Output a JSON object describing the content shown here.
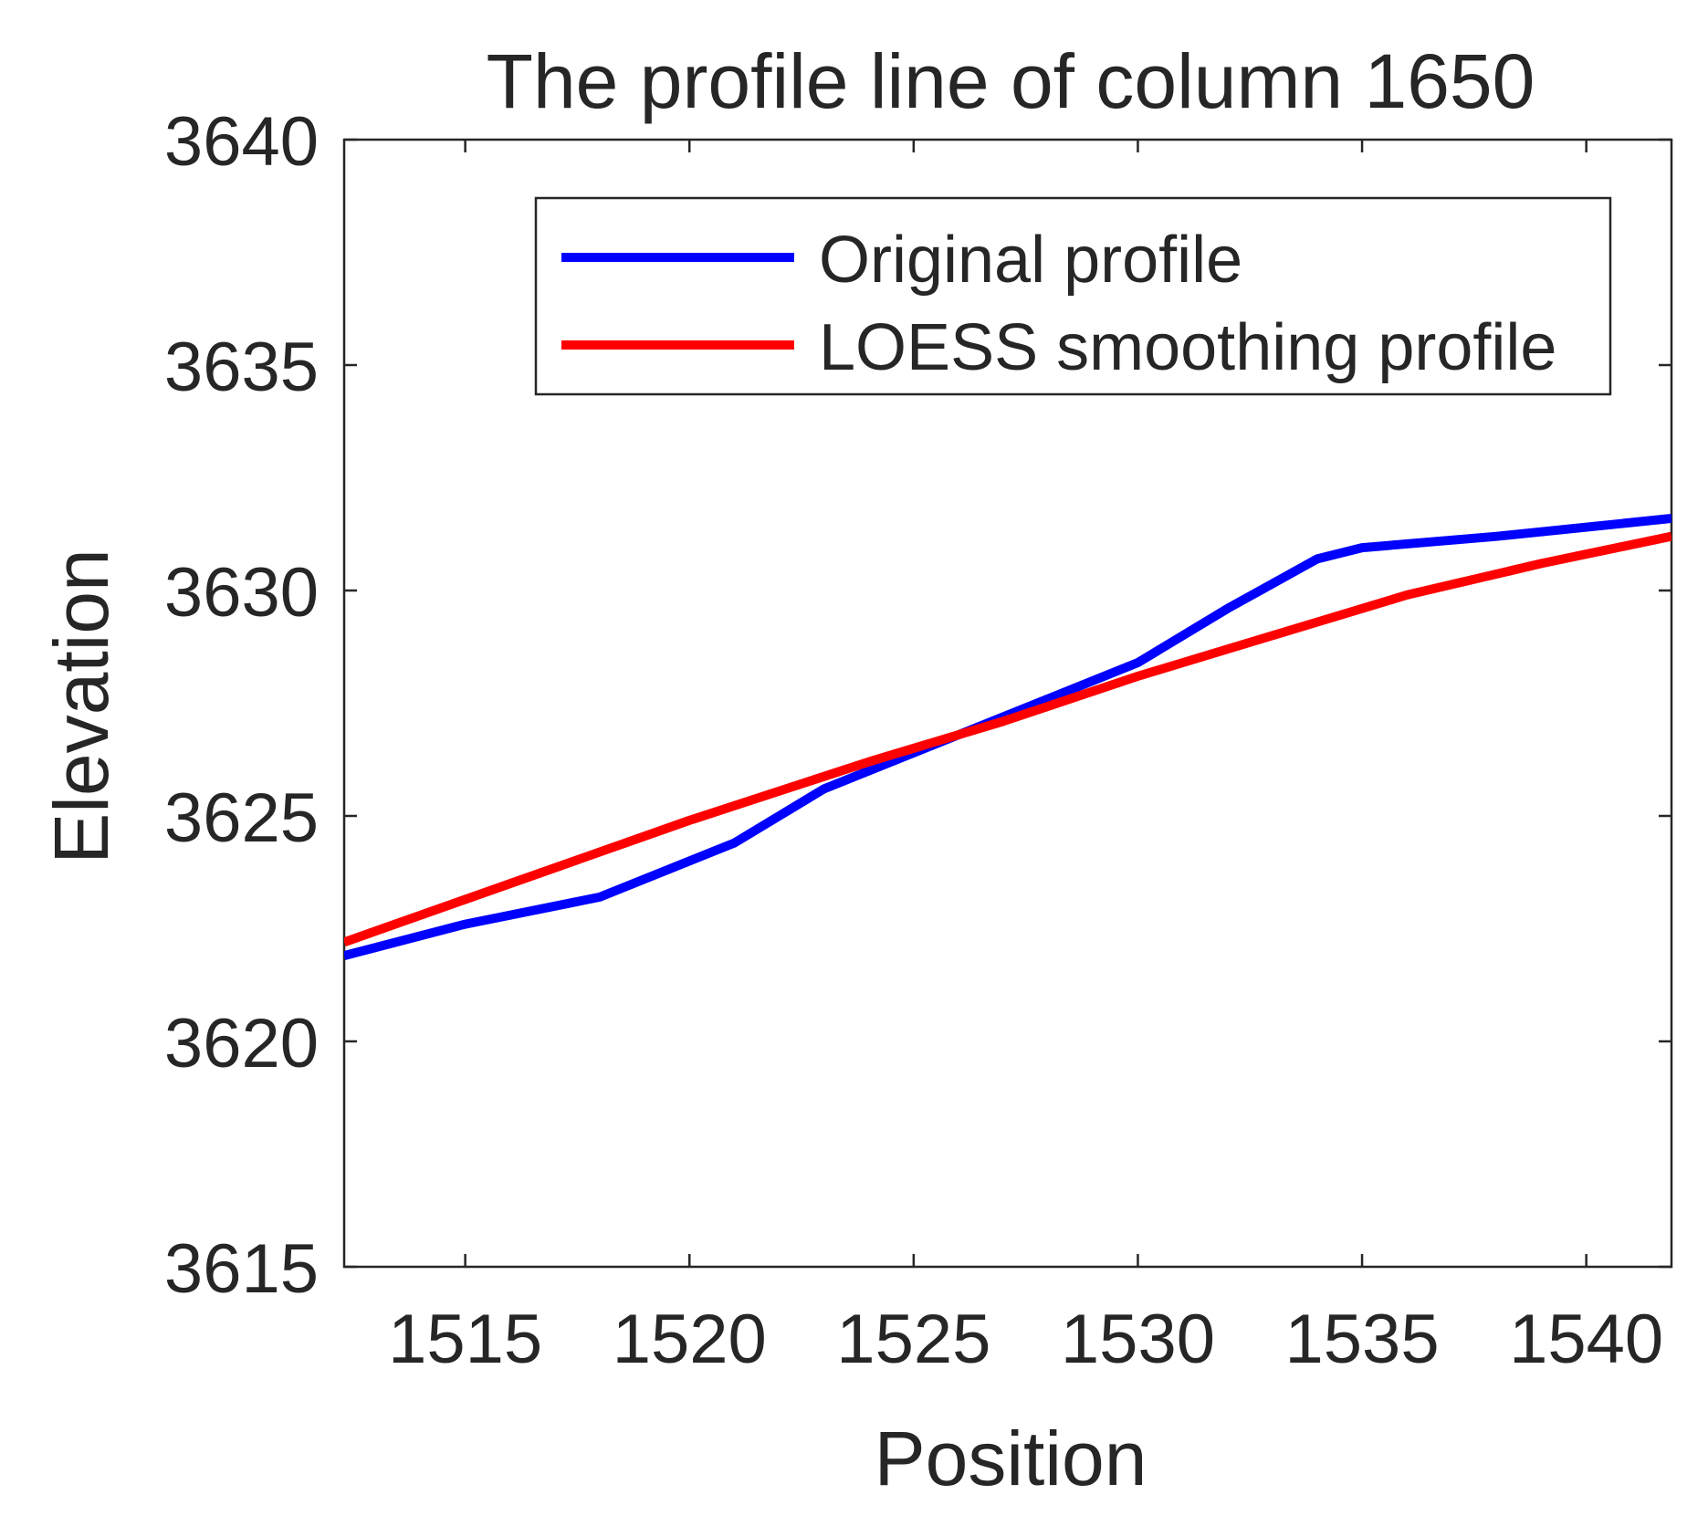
{
  "chart_data": {
    "type": "line",
    "title": "The profile line of column 1650",
    "xlabel": "Position",
    "ylabel": "Elevation",
    "xlim": [
      1512.3,
      1541.9
    ],
    "ylim": [
      3615,
      3640
    ],
    "xticks": [
      1515,
      1520,
      1525,
      1530,
      1535,
      1540
    ],
    "yticks": [
      3615,
      3620,
      3625,
      3630,
      3635,
      3640
    ],
    "xtick_labels": [
      "1515",
      "1520",
      "1525",
      "1530",
      "1535",
      "1540"
    ],
    "ytick_labels": [
      "3615",
      "3620",
      "3625",
      "3630",
      "3635",
      "3640"
    ],
    "grid": false,
    "legend_position": "top-right",
    "series": [
      {
        "name": "Original profile",
        "color": "#0000ff",
        "x": [
          1512.3,
          1515,
          1518,
          1521,
          1523,
          1525.5,
          1528,
          1530,
          1532,
          1534,
          1535,
          1538,
          1541.9
        ],
        "y": [
          3621.9,
          3622.6,
          3623.2,
          3624.4,
          3625.6,
          3626.6,
          3627.6,
          3628.4,
          3629.6,
          3630.7,
          3630.95,
          3631.2,
          3631.6
        ]
      },
      {
        "name": "LOESS smoothing profile",
        "color": "#ff0000",
        "x": [
          1512.3,
          1516,
          1520,
          1524,
          1527,
          1530,
          1533,
          1536,
          1539,
          1541.9
        ],
        "y": [
          3622.2,
          3623.5,
          3624.9,
          3626.2,
          3627.1,
          3628.1,
          3629.0,
          3629.9,
          3630.6,
          3631.2
        ]
      }
    ]
  }
}
